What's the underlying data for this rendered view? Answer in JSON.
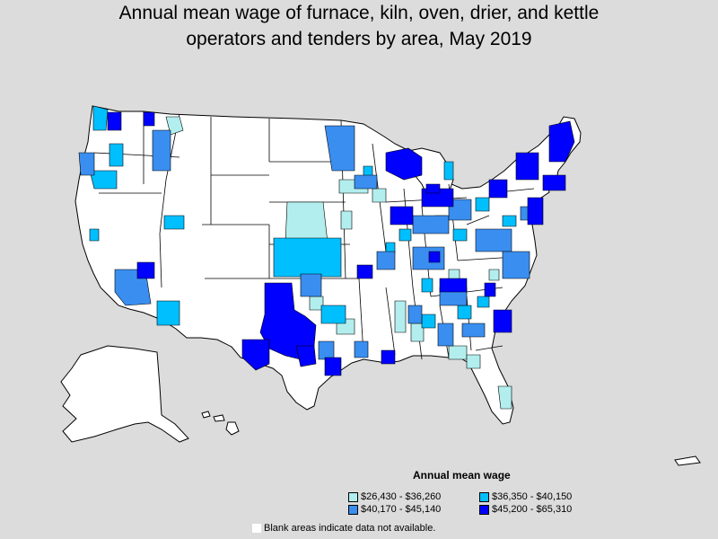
{
  "title": {
    "line1": "Annual mean wage of furnace, kiln, oven, drier, and kettle",
    "line2": "operators and tenders by area, May 2019"
  },
  "legend": {
    "title": "Annual mean wage",
    "items": [
      {
        "label": "$26,430 - $36,260",
        "color": "#b3eeee"
      },
      {
        "label": "$36,350 - $40,150",
        "color": "#00bfff"
      },
      {
        "label": "$40,170 - $45,140",
        "color": "#3a8ef0"
      },
      {
        "label": "$45,200 - $65,310",
        "color": "#0000ff"
      }
    ]
  },
  "note": "Blank areas indicate data not available.",
  "colors": {
    "background": "#dcdcdc",
    "blank": "#ffffff",
    "border": "#000000"
  }
}
